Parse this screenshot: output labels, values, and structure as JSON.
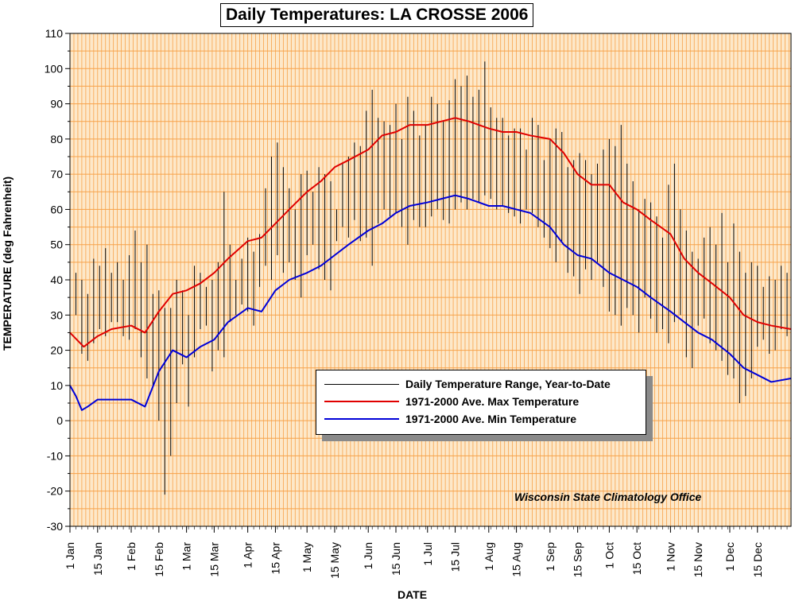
{
  "chart_data": {
    "type": "line",
    "title": "Daily Temperatures: LA CROSSE 2006",
    "xlabel": "DATE",
    "ylabel": "TEMPERATURE (deg Fahrenheit)",
    "ylim": [
      -30,
      110
    ],
    "yticks": [
      110,
      100,
      90,
      80,
      70,
      60,
      50,
      40,
      30,
      20,
      10,
      0,
      -10,
      -20,
      -30
    ],
    "xlim": [
      1,
      366
    ],
    "xticks": [
      {
        "label": "1 Jan",
        "day": 1
      },
      {
        "label": "15 Jan",
        "day": 15
      },
      {
        "label": "1 Feb",
        "day": 32
      },
      {
        "label": "15 Feb",
        "day": 46
      },
      {
        "label": "1 Mar",
        "day": 60
      },
      {
        "label": "15 Mar",
        "day": 74
      },
      {
        "label": "1 Apr",
        "day": 91
      },
      {
        "label": "15 Apr",
        "day": 105
      },
      {
        "label": "1 May",
        "day": 121
      },
      {
        "label": "15 May",
        "day": 135
      },
      {
        "label": "1 Jun",
        "day": 152
      },
      {
        "label": "15 Jun",
        "day": 166
      },
      {
        "label": "1 Jul",
        "day": 182
      },
      {
        "label": "15 Jul",
        "day": 196
      },
      {
        "label": "1 Aug",
        "day": 213
      },
      {
        "label": "15 Aug",
        "day": 227
      },
      {
        "label": "1 Sep",
        "day": 244
      },
      {
        "label": "15 Sep",
        "day": 258
      },
      {
        "label": "1 Oct",
        "day": 274
      },
      {
        "label": "15 Oct",
        "day": 288
      },
      {
        "label": "1 Nov",
        "day": 305
      },
      {
        "label": "15 Nov",
        "day": 319
      },
      {
        "label": "1 Dec",
        "day": 335
      },
      {
        "label": "15 Dec",
        "day": 349
      }
    ],
    "grid": true,
    "legend_position": "center-right",
    "colors": {
      "background": "#fde8c9",
      "grid": "#f7a24a",
      "range": "#000000",
      "max": "#e00000",
      "min": "#0000d8"
    },
    "series": [
      {
        "name": "1971-2000 Ave. Max Temperature",
        "color": "#e00000",
        "x": [
          1,
          8,
          15,
          22,
          32,
          39,
          46,
          53,
          60,
          67,
          74,
          81,
          91,
          98,
          105,
          112,
          121,
          128,
          135,
          142,
          152,
          159,
          166,
          173,
          182,
          189,
          196,
          203,
          213,
          220,
          227,
          234,
          244,
          251,
          258,
          265,
          274,
          281,
          288,
          295,
          305,
          312,
          319,
          326,
          335,
          342,
          349,
          356,
          366
        ],
        "y": [
          25,
          21,
          24,
          26,
          27,
          25,
          31,
          36,
          37,
          39,
          42,
          46,
          51,
          52,
          56,
          60,
          65,
          68,
          72,
          74,
          77,
          81,
          82,
          84,
          84,
          85,
          86,
          85,
          83,
          82,
          82,
          81,
          80,
          76,
          70,
          67,
          67,
          62,
          60,
          57,
          53,
          46,
          42,
          39,
          35,
          30,
          28,
          27,
          26
        ]
      },
      {
        "name": "1971-2000 Ave. Min Temperature",
        "color": "#0000d8",
        "x": [
          1,
          4,
          7,
          10,
          15,
          22,
          32,
          39,
          46,
          53,
          60,
          67,
          74,
          81,
          91,
          98,
          105,
          112,
          121,
          128,
          135,
          142,
          152,
          159,
          166,
          173,
          182,
          189,
          196,
          203,
          213,
          220,
          227,
          234,
          244,
          251,
          258,
          265,
          274,
          281,
          288,
          295,
          305,
          312,
          319,
          326,
          335,
          342,
          349,
          356,
          366
        ],
        "y": [
          10,
          7,
          3,
          4,
          6,
          6,
          6,
          4,
          14,
          20,
          18,
          21,
          23,
          28,
          32,
          31,
          37,
          40,
          42,
          44,
          47,
          50,
          54,
          56,
          59,
          61,
          62,
          63,
          64,
          63,
          61,
          61,
          60,
          59,
          55,
          50,
          47,
          46,
          42,
          40,
          38,
          35,
          31,
          28,
          25,
          23,
          19,
          15,
          13,
          11,
          12
        ]
      },
      {
        "name": "Daily Temperature Range, Year-to-Date",
        "color": "#000000",
        "type": "range",
        "x": [
          1,
          4,
          7,
          10,
          13,
          16,
          19,
          22,
          25,
          28,
          31,
          34,
          37,
          40,
          43,
          46,
          49,
          52,
          55,
          58,
          61,
          64,
          67,
          70,
          73,
          76,
          79,
          82,
          85,
          88,
          91,
          94,
          97,
          100,
          103,
          106,
          109,
          112,
          115,
          118,
          121,
          124,
          127,
          130,
          133,
          136,
          139,
          142,
          145,
          148,
          151,
          154,
          157,
          160,
          163,
          166,
          169,
          172,
          175,
          178,
          181,
          184,
          187,
          190,
          193,
          196,
          199,
          202,
          205,
          208,
          211,
          214,
          217,
          220,
          223,
          226,
          229,
          232,
          235,
          238,
          241,
          244,
          247,
          250,
          253,
          256,
          259,
          262,
          265,
          268,
          271,
          274,
          277,
          280,
          283,
          286,
          289,
          292,
          295,
          298,
          301,
          304,
          307,
          310,
          313,
          316,
          319,
          322,
          325,
          328,
          331,
          334,
          337,
          340,
          343,
          346,
          349,
          352,
          355,
          358,
          361,
          364
        ],
        "low": [
          26,
          30,
          19,
          17,
          22,
          26,
          24,
          28,
          28,
          24,
          23,
          26,
          18,
          12,
          10,
          0,
          -21,
          -10,
          5,
          16,
          4,
          18,
          26,
          27,
          14,
          20,
          18,
          28,
          30,
          33,
          31,
          27,
          38,
          44,
          40,
          47,
          42,
          45,
          40,
          35,
          47,
          50,
          43,
          40,
          37,
          51,
          55,
          52,
          57,
          51,
          52,
          44,
          56,
          60,
          58,
          59,
          55,
          50,
          57,
          55,
          55,
          58,
          60,
          57,
          56,
          60,
          62,
          60,
          63,
          62,
          64,
          63,
          60,
          61,
          59,
          58,
          56,
          60,
          59,
          55,
          52,
          49,
          45,
          51,
          42,
          41,
          36,
          43,
          40,
          45,
          38,
          31,
          30,
          27,
          32,
          30,
          25,
          35,
          29,
          25,
          26,
          22,
          28,
          30,
          18,
          15,
          27,
          29,
          22,
          20,
          17,
          13,
          12,
          5,
          7,
          12,
          21,
          23,
          19,
          20,
          26,
          24
        ],
        "high": [
          38,
          42,
          40,
          36,
          46,
          44,
          49,
          42,
          45,
          40,
          47,
          54,
          45,
          50,
          36,
          37,
          32,
          32,
          40,
          37,
          30,
          44,
          42,
          38,
          40,
          45,
          65,
          50,
          40,
          46,
          52,
          48,
          53,
          66,
          75,
          79,
          72,
          66,
          60,
          70,
          71,
          65,
          72,
          70,
          68,
          60,
          73,
          75,
          79,
          78,
          88,
          94,
          86,
          85,
          84,
          90,
          80,
          92,
          88,
          81,
          84,
          92,
          90,
          85,
          91,
          97,
          95,
          98,
          92,
          94,
          102,
          89,
          86,
          86,
          81,
          83,
          83,
          77,
          86,
          84,
          74,
          80,
          83,
          82,
          72,
          74,
          76,
          74,
          70,
          73,
          77,
          80,
          78,
          84,
          73,
          68,
          60,
          63,
          62,
          58,
          52,
          67,
          73,
          60,
          54,
          48,
          46,
          52,
          55,
          50,
          59,
          45,
          56,
          48,
          42,
          45,
          44,
          38,
          41,
          40,
          44,
          42
        ]
      }
    ]
  },
  "legend": {
    "range_label": "Daily Temperature Range, Year-to-Date",
    "max_label": "1971-2000 Ave. Max Temperature",
    "min_label": "1971-2000 Ave. Min Temperature"
  },
  "credit": "Wisconsin State Climatology Office"
}
